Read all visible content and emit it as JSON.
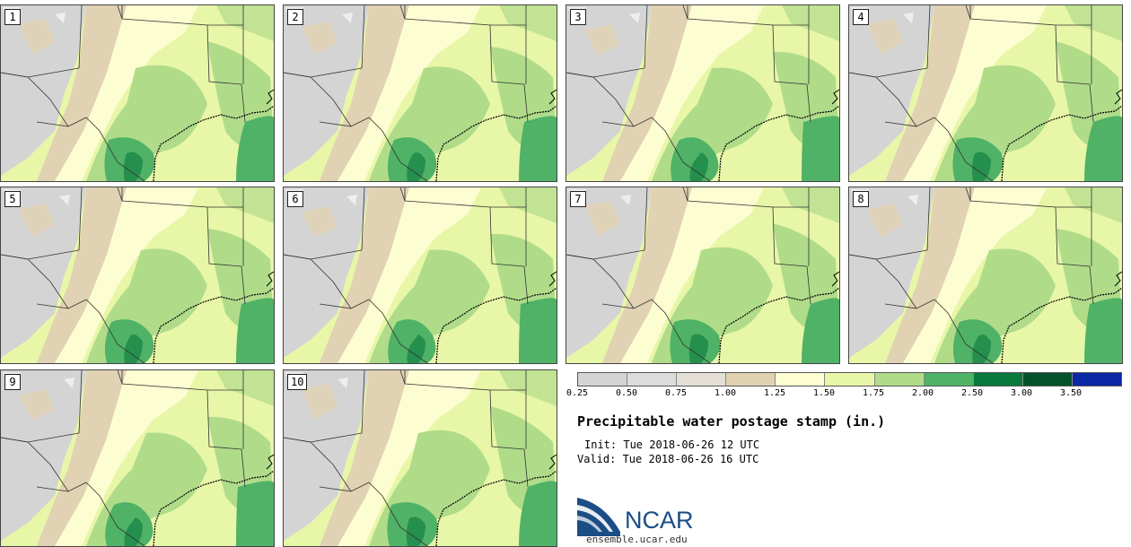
{
  "panels": [
    {
      "label": "1"
    },
    {
      "label": "2"
    },
    {
      "label": "3"
    },
    {
      "label": "4"
    },
    {
      "label": "5"
    },
    {
      "label": "6"
    },
    {
      "label": "7"
    },
    {
      "label": "8"
    },
    {
      "label": "9"
    },
    {
      "label": "10"
    }
  ],
  "colorbar": {
    "bins": [
      {
        "color": "#d4d4d4"
      },
      {
        "color": "#dcdcdc"
      },
      {
        "color": "#e4e0d6"
      },
      {
        "color": "#e0d2b2"
      },
      {
        "color": "#fdfdd2"
      },
      {
        "color": "#e8f6a8"
      },
      {
        "color": "#b0dc8a"
      },
      {
        "color": "#4fb266"
      },
      {
        "color": "#0a7a3c"
      },
      {
        "color": "#04522a"
      },
      {
        "color": "#0b27a6"
      }
    ],
    "labels": [
      "0.25",
      "0.50",
      "0.75",
      "1.00",
      "1.25",
      "1.50",
      "1.75",
      "2.00",
      "2.50",
      "3.00",
      "3.50"
    ]
  },
  "title": "Precipitable water postage stamp (in.)",
  "init_text": "Init: Tue 2018-06-26 12 UTC",
  "valid_text": "Valid: Tue 2018-06-26 16 UTC",
  "logo": {
    "text": "NCAR",
    "url": "ensemble.ucar.edu"
  },
  "colors": {
    "grey": "#d4d4d4",
    "tan": "#e0d2b2",
    "cream": "#fdfdd2",
    "lightgreen": "#e8f6a8",
    "midgreen": "#b0dc8a",
    "green": "#4fb266",
    "darkgreen": "#0a7a3c",
    "border": "#333333",
    "brand": "#1b4e85"
  }
}
